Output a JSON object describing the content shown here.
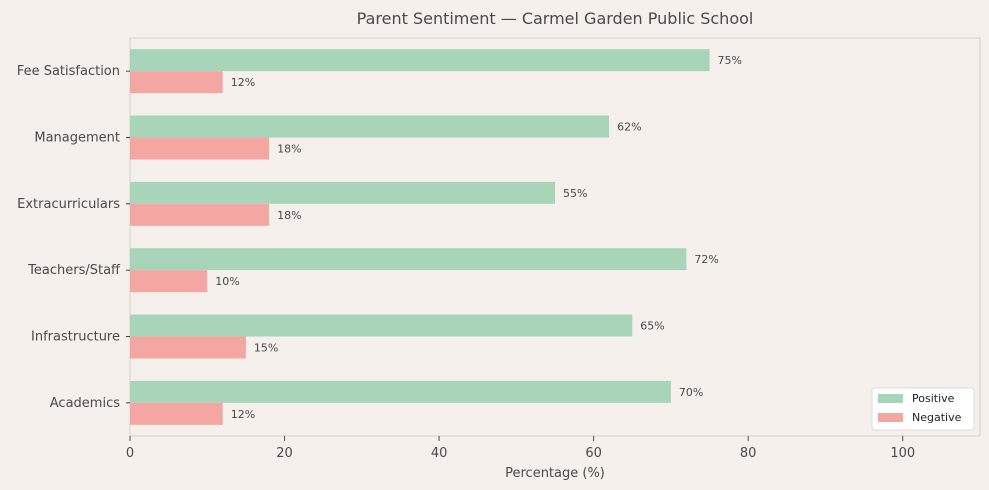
{
  "chart_data": {
    "type": "bar",
    "orientation": "horizontal",
    "title": "Parent Sentiment — Carmel Garden Public School",
    "xlabel": "Percentage (%)",
    "ylabel": "",
    "xlim": [
      0,
      110
    ],
    "xticks": [
      0,
      20,
      40,
      60,
      80,
      100
    ],
    "categories": [
      "Fee Satisfaction",
      "Management",
      "Extracurriculars",
      "Teachers/Staff",
      "Infrastructure",
      "Academics"
    ],
    "series": [
      {
        "name": "Positive",
        "color": "#a8d5ba",
        "values": [
          75,
          62,
          55,
          72,
          65,
          70
        ]
      },
      {
        "name": "Negative",
        "color": "#f4a6a2",
        "values": [
          12,
          18,
          18,
          10,
          15,
          12
        ]
      }
    ],
    "value_suffix": "%",
    "grid": false,
    "legend_position": "bottom-right"
  }
}
